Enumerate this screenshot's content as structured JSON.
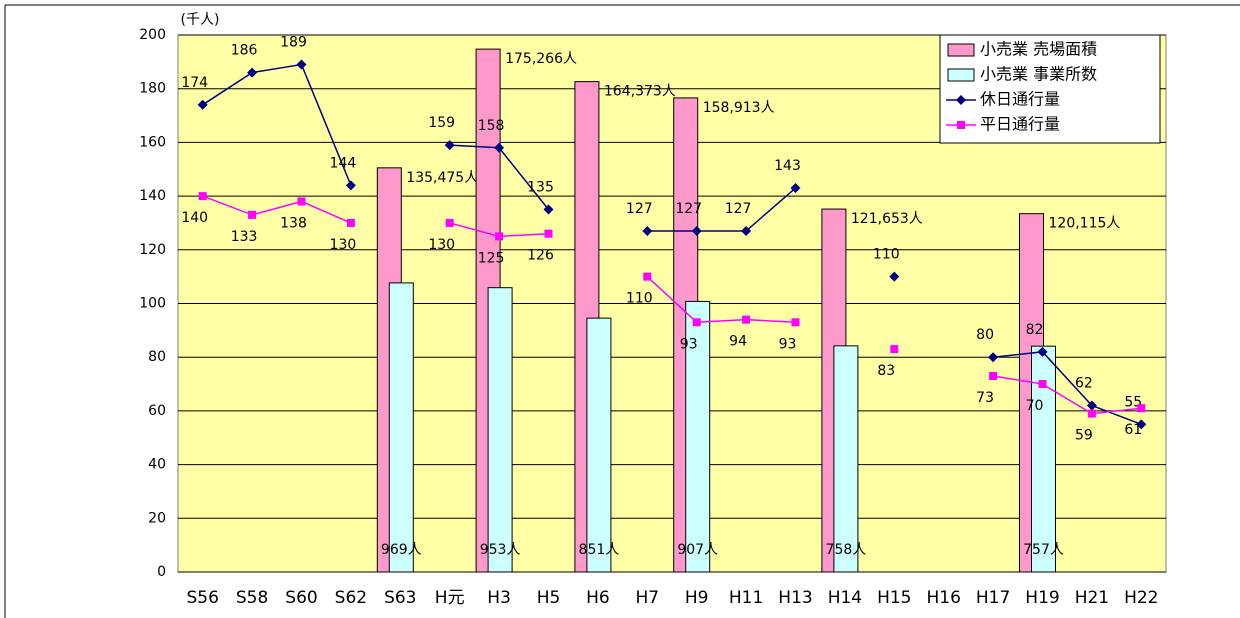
{
  "chart_data": {
    "type": "bar_line",
    "y_label": "(千人)",
    "categories": [
      "S56",
      "S58",
      "S60",
      "S62",
      "S63",
      "H元",
      "H3",
      "H5",
      "H6",
      "H7",
      "H9",
      "H11",
      "H13",
      "H14",
      "H15",
      "H16",
      "H17",
      "H19",
      "H21",
      "H22"
    ],
    "ylim": [
      0,
      200
    ],
    "yticks": [
      0,
      20,
      40,
      60,
      80,
      100,
      120,
      140,
      160,
      180,
      200
    ],
    "grid": true,
    "legend": "upper right",
    "series": [
      {
        "name": "小売業 売場面積",
        "kind": "bar",
        "color": "#ff99cc",
        "ylim": [
          0,
          180000
        ],
        "values": [
          null,
          null,
          null,
          null,
          135475,
          null,
          175266,
          null,
          164373,
          null,
          158913,
          null,
          null,
          121653,
          null,
          null,
          null,
          120115,
          null,
          null
        ],
        "value_labels": [
          null,
          null,
          null,
          null,
          "135,475人",
          null,
          "175,266人",
          null,
          "164,373人",
          null,
          "158,913人",
          null,
          null,
          "121,653人",
          null,
          null,
          null,
          "120,115人",
          null,
          null
        ]
      },
      {
        "name": "小売業 事業所数",
        "kind": "bar",
        "color": "#ccffff",
        "ylim": [
          0,
          1800
        ],
        "values": [
          null,
          null,
          null,
          null,
          969,
          null,
          953,
          null,
          851,
          null,
          907,
          null,
          null,
          758,
          null,
          null,
          null,
          757,
          null,
          null
        ],
        "value_labels": [
          null,
          null,
          null,
          null,
          "969人",
          null,
          "953人",
          null,
          "851人",
          null,
          "907人",
          null,
          null,
          "758人",
          null,
          null,
          null,
          "757人",
          null,
          null
        ]
      },
      {
        "name": "休日通行量",
        "kind": "line",
        "color": "#000080",
        "marker": "diamond",
        "values": [
          174,
          186,
          189,
          144,
          null,
          159,
          158,
          135,
          null,
          127,
          127,
          127,
          143,
          null,
          110,
          null,
          80,
          82,
          62,
          55
        ]
      },
      {
        "name": "平日通行量",
        "kind": "line",
        "color": "#ff00ff",
        "marker": "square",
        "values": [
          140,
          133,
          138,
          130,
          null,
          130,
          125,
          126,
          null,
          110,
          93,
          94,
          93,
          null,
          83,
          null,
          73,
          70,
          59,
          61
        ]
      }
    ]
  }
}
